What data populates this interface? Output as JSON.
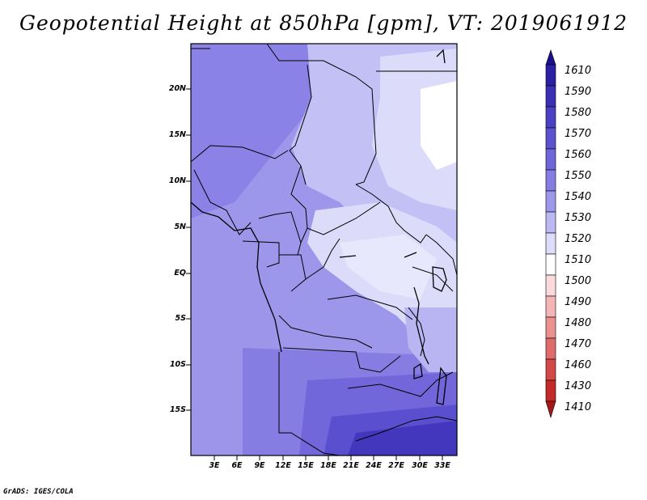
{
  "title": "Geopotential Height at 850hPa [gpm], VT: 2019061912",
  "credit": "GrADS: IGES/COLA",
  "map": {
    "lat_labels": [
      "20N",
      "15N",
      "10N",
      "5N",
      "EQ",
      "5S",
      "10S",
      "15S"
    ],
    "lon_labels": [
      "3E",
      "6E",
      "9E",
      "12E",
      "15E",
      "18E",
      "21E",
      "24E",
      "27E",
      "30E",
      "33E"
    ]
  },
  "colorbar": {
    "labels": [
      "1610",
      "1590",
      "1580",
      "1570",
      "1560",
      "1550",
      "1540",
      "1530",
      "1520",
      "1510",
      "1500",
      "1490",
      "1480",
      "1470",
      "1460",
      "1430",
      "1410"
    ],
    "colors": [
      "#1a0f8c",
      "#2b1fa3",
      "#3b30b5",
      "#4a40c4",
      "#5c52d0",
      "#7066db",
      "#857de3",
      "#9e98ec",
      "#bcb8f4",
      "#dcdcfb",
      "#ffffff",
      "#fcd9da",
      "#f5b5b5",
      "#ec9090",
      "#e06b6b",
      "#d44848",
      "#c42a2a",
      "#a41818"
    ]
  },
  "colors": {
    "bg": "#ffffff",
    "frame": "#000000"
  }
}
